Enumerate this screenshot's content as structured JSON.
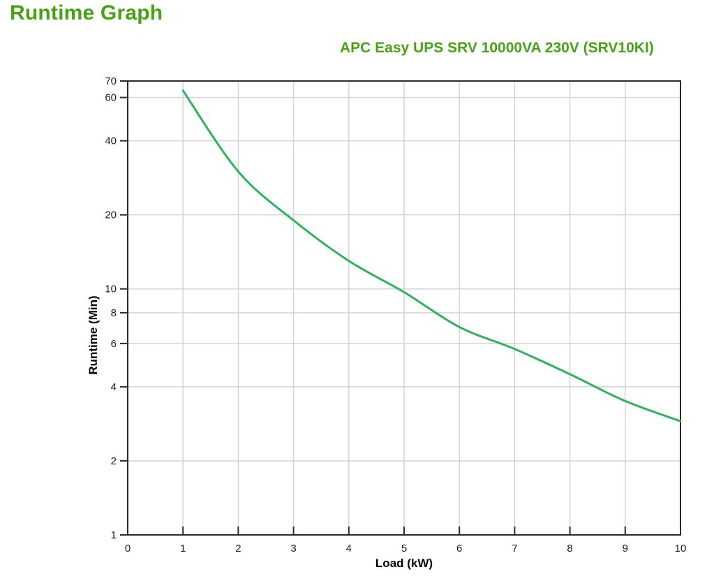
{
  "page": {
    "title": "Runtime Graph",
    "subtitle": "APC Easy UPS SRV 10000VA 230V (SRV10KI)"
  },
  "colors": {
    "title_green": "#47A314",
    "curve_green": "#2EB25C",
    "grid": "#D4D4D4",
    "axis": "#2B2B2B",
    "tick_label": "#1A1A1A"
  },
  "chart_data": {
    "type": "line",
    "title": "APC Easy UPS SRV 10000VA 230V (SRV10KI)",
    "xlabel": "Load (kW)",
    "ylabel": "Runtime (Min)",
    "x": [
      1,
      2,
      3,
      4,
      5,
      6,
      7,
      8,
      9,
      10
    ],
    "series": [
      {
        "name": "Runtime",
        "values": [
          64,
          30,
          19,
          13,
          9.7,
          7,
          5.7,
          4.5,
          3.5,
          2.9
        ]
      }
    ],
    "xlim": [
      0,
      10
    ],
    "ylim": [
      1,
      70
    ],
    "y_scale": "log",
    "xticks": [
      0,
      1,
      2,
      3,
      4,
      5,
      6,
      7,
      8,
      9,
      10
    ],
    "yticks": [
      70,
      60,
      40,
      20,
      10,
      8,
      6,
      4,
      2,
      1
    ],
    "grid": true,
    "legend": false
  }
}
